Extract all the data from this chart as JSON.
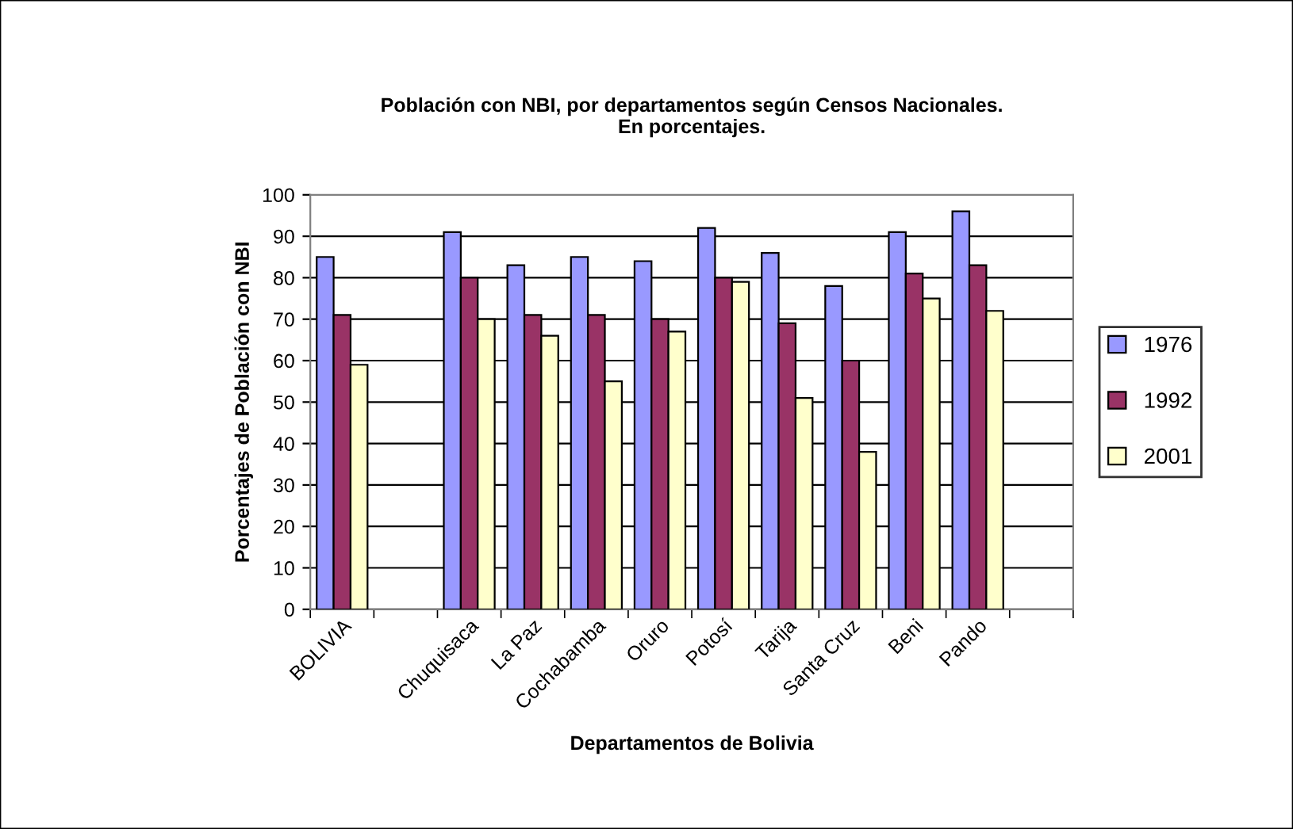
{
  "chart_data": {
    "type": "bar",
    "title": "Población con NBI, por departamentos según Censos Nacionales.\nEn porcentajes.",
    "xlabel": "Departamentos de Bolivia",
    "ylabel": "Porcentajes de Población con NBI",
    "categories": [
      "BOLIVIA",
      null,
      "Chuquisaca",
      "La Paz",
      "Cochabamba",
      "Oruro",
      "Potosí",
      "Tarija",
      "Santa Cruz",
      "Beni",
      "Pando",
      null
    ],
    "series": [
      {
        "name": "1976",
        "color": "#9999ff",
        "values": [
          85,
          null,
          91,
          83,
          85,
          84,
          92,
          86,
          78,
          91,
          96,
          null
        ]
      },
      {
        "name": "1992",
        "color": "#993366",
        "values": [
          71,
          null,
          80,
          71,
          71,
          70,
          80,
          69,
          60,
          81,
          83,
          null
        ]
      },
      {
        "name": "2001",
        "color": "#ffffcc",
        "values": [
          59,
          null,
          70,
          66,
          55,
          67,
          79,
          51,
          38,
          75,
          72,
          null
        ]
      }
    ],
    "ylim": [
      0,
      100
    ],
    "yticks": [
      0,
      10,
      20,
      30,
      40,
      50,
      60,
      70,
      80,
      90,
      100
    ],
    "grid": "y",
    "legend": "right"
  }
}
